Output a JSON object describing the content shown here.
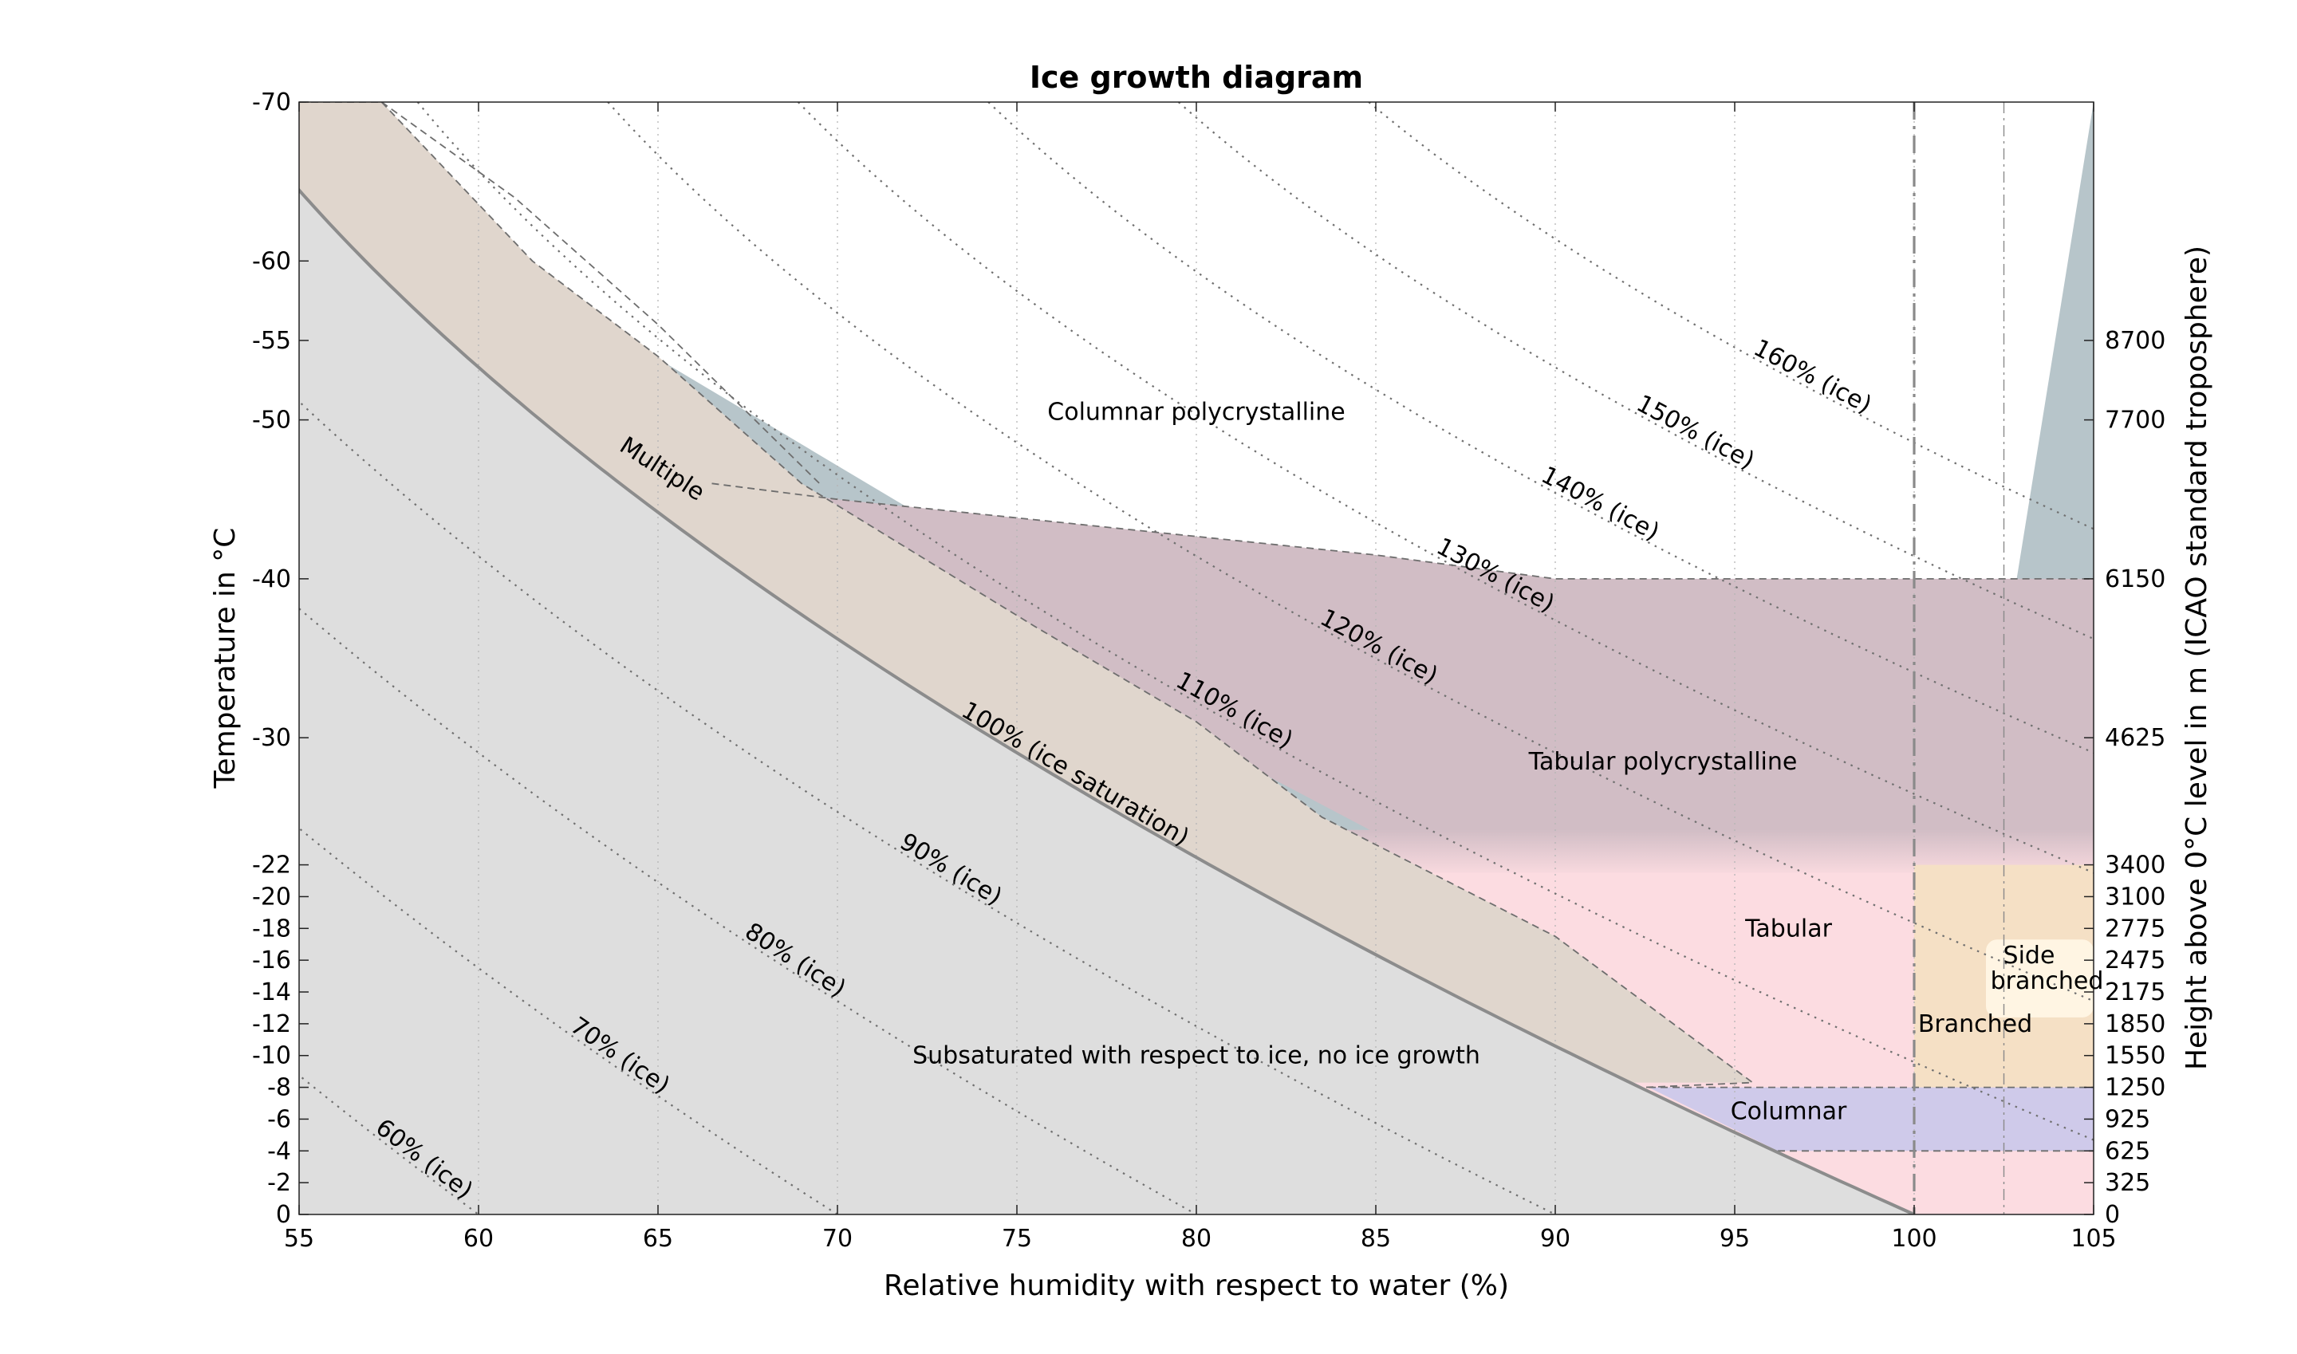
{
  "chart_data": {
    "type": "area",
    "title": "Ice growth diagram",
    "xlabel": "Relative humidity with respect to water (%)",
    "ylabel": "Temperature in °C",
    "y2label": "Height above 0°C level in m (ICAO standard troposphere)",
    "xlim": [
      55,
      105
    ],
    "ylim": [
      0,
      -70
    ],
    "x_ticks": [
      "55",
      "60",
      "65",
      "70",
      "75",
      "80",
      "85",
      "90",
      "95",
      "100",
      "105"
    ],
    "y_ticks": [
      {
        "t": 0,
        "label": "0"
      },
      {
        "t": -2,
        "label": "-2"
      },
      {
        "t": -4,
        "label": "-4"
      },
      {
        "t": -6,
        "label": "-6"
      },
      {
        "t": -8,
        "label": "-8"
      },
      {
        "t": -10,
        "label": "-10"
      },
      {
        "t": -12,
        "label": "-12"
      },
      {
        "t": -14,
        "label": "-14"
      },
      {
        "t": -16,
        "label": "-16"
      },
      {
        "t": -18,
        "label": "-18"
      },
      {
        "t": -20,
        "label": "-20"
      },
      {
        "t": -22,
        "label": "-22"
      },
      {
        "t": -30,
        "label": "-30"
      },
      {
        "t": -40,
        "label": "-40"
      },
      {
        "t": -50,
        "label": "-50"
      },
      {
        "t": -55,
        "label": "-55"
      },
      {
        "t": -60,
        "label": "-60"
      },
      {
        "t": -70,
        "label": "-70"
      }
    ],
    "y2_ticks": [
      {
        "t": 0,
        "label": "0"
      },
      {
        "t": -2,
        "label": "325"
      },
      {
        "t": -4,
        "label": "625"
      },
      {
        "t": -6,
        "label": "925"
      },
      {
        "t": -8,
        "label": "1250"
      },
      {
        "t": -10,
        "label": "1550"
      },
      {
        "t": -12,
        "label": "1850"
      },
      {
        "t": -14,
        "label": "2175"
      },
      {
        "t": -16,
        "label": "2475"
      },
      {
        "t": -18,
        "label": "2775"
      },
      {
        "t": -20,
        "label": "3100"
      },
      {
        "t": -22,
        "label": "3400"
      },
      {
        "t": -30,
        "label": "4625"
      },
      {
        "t": -40,
        "label": "6150"
      },
      {
        "t": -50,
        "label": "7700"
      },
      {
        "t": -55,
        "label": "8700"
      }
    ],
    "isolines": [
      {
        "label": "60% (ice)",
        "si": 0.6,
        "label_t": -2.8
      },
      {
        "label": "70% (ice)",
        "si": 0.7,
        "label_t": -9.3
      },
      {
        "label": "80% (ice)",
        "si": 0.8,
        "label_t": -15.3
      },
      {
        "label": "90% (ice)",
        "si": 0.9,
        "label_t": -21.0
      },
      {
        "label": "100% (ice saturation)",
        "si": 1.0,
        "label_t": -27.0
      },
      {
        "label": "110% (ice)",
        "si": 1.1,
        "label_t": -31.0
      },
      {
        "label": "120% (ice)",
        "si": 1.2,
        "label_t": -35.0
      },
      {
        "label": "130% (ice)",
        "si": 1.3,
        "label_t": -39.5
      },
      {
        "label": "140% (ice)",
        "si": 1.4,
        "label_t": -44.0
      },
      {
        "label": "150% (ice)",
        "si": 1.5,
        "label_t": -48.5
      },
      {
        "label": "160% (ice)",
        "si": 1.6,
        "label_t": -52.0
      }
    ],
    "regions": [
      {
        "name": "Subsaturated with respect to ice, no ice growth",
        "color": "#dedede",
        "label_x": 80,
        "label_t": -9.5
      },
      {
        "name": "Multiple",
        "color": "#e0d6cd",
        "label_x": 65,
        "label_t": -46.5
      },
      {
        "name": "Columnar polycrystalline",
        "color": "#b7c5ca",
        "label_x": 80,
        "label_t": -50
      },
      {
        "name": "Tabular polycrystalline",
        "color": "#d1bdc5",
        "label_x": 93,
        "label_t": -28
      },
      {
        "name": "Tabular",
        "color": "#fcdce1",
        "label_x": 96.5,
        "label_t": -17.5
      },
      {
        "name": "Columnar",
        "color": "#cfcaea",
        "label_x": 96.5,
        "label_t": -6
      },
      {
        "name": "Branched",
        "color": "#f5e0c5",
        "label_x": 101.7,
        "label_t": -11.5
      },
      {
        "name": "Side",
        "color": "#fff5e3",
        "label_x": 103.2,
        "label_t": -15.8
      },
      {
        "name": "branched",
        "color": "#fff5e3",
        "label_x": 103.7,
        "label_t": -14.2
      }
    ]
  }
}
